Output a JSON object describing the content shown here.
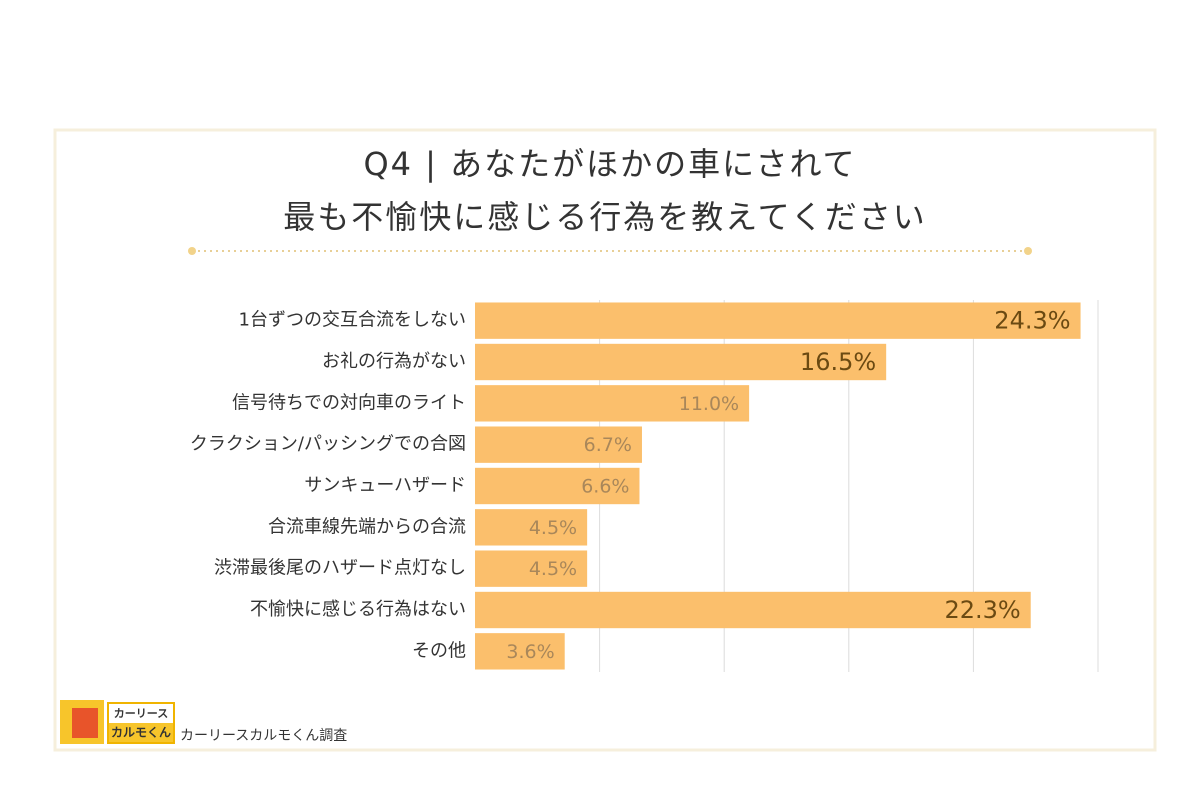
{
  "chart_data": {
    "type": "bar",
    "orientation": "horizontal",
    "title": [
      "Q4 | あなたがほかの車にされて",
      "最も不愉快に感じる行為を教えてください"
    ],
    "categories": [
      "1台ずつの交互合流をしない",
      "お礼の行為がない",
      "信号待ちでの対向車のライト",
      "クラクション/パッシングでの合図",
      "サンキューハザード",
      "合流車線先端からの合流",
      "渋滞最後尾のハザード点灯なし",
      "不愉快に感じる行為はない",
      "その他"
    ],
    "values": [
      24.3,
      16.5,
      11.0,
      6.7,
      6.6,
      4.5,
      4.5,
      22.3,
      3.6
    ],
    "value_labels": [
      "24.3%",
      "16.5%",
      "11.0%",
      "6.7%",
      "6.6%",
      "4.5%",
      "4.5%",
      "22.3%",
      "3.6%"
    ],
    "color": "#fbbf6c",
    "xlim": [
      0,
      25
    ],
    "xticks": [
      5,
      10,
      15,
      20,
      25
    ],
    "grid": true
  },
  "logo": {
    "line1": "カーリース",
    "line2": "カルモくん"
  },
  "source": "カーリースカルモくん調査"
}
